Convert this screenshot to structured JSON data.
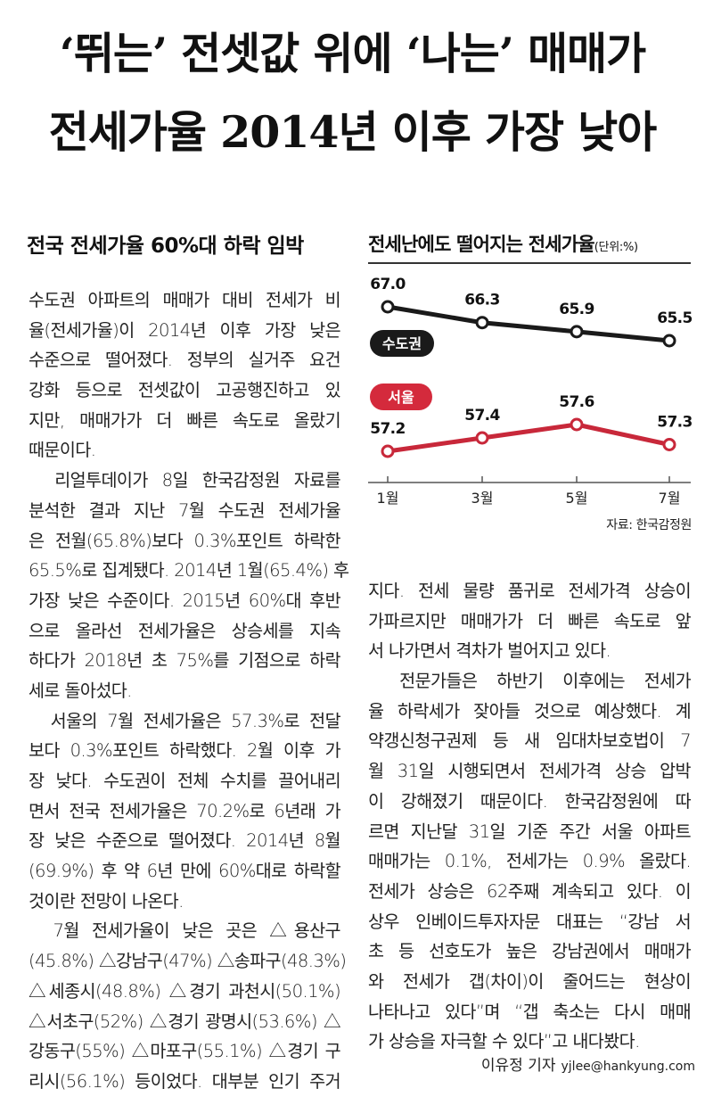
{
  "headline": {
    "line1": "‘뛰는’ 전셋값 위에 ‘나는’ 매매가",
    "line2": "전세가율 2014년 이후 가장 낮아"
  },
  "subhead": "전국 전세가율 60%대 하락 임박",
  "body_left": [
    "수도권 아파트의 매매가 대비 전세가 비",
    "율(전세가율)이 2014년 이후 가장 낮은",
    "수준으로 떨어졌다. 정부의 실거주 요건",
    "강화 등으로 전셋값이 고공행진하고 있",
    "지만, 매매가가 더 빠른 속도로 올랐기",
    "때문이다.",
    "　리얼투데이가 8일 한국감정원 자료를",
    "분석한 결과 지난 7월 수도권 전세가율",
    "은 전월(65.8%)보다 0.3%포인트 하락한",
    "65.5%로 집계됐다. 2014년 1월(65.4%) 후",
    "가장 낮은 수준이다. 2015년 60%대 후반",
    "으로 올라선 전세가율은 상승세를 지속",
    "하다가 2018년 초 75%를 기점으로 하락",
    "세로 돌아섰다.",
    "　서울의 7월 전세가율은 57.3%로 전달",
    "보다 0.3%포인트 하락했다. 2월 이후 가",
    "장 낮다. 수도권이 전체 수치를 끌어내리",
    "면서 전국 전세가율은 70.2%로 6년래 가",
    "장 낮은 수준으로 떨어졌다. 2014년 8월",
    "(69.9%) 후 약 6년 만에 60%대로 하락할",
    "것이란 전망이 나온다.",
    "　7월 전세가율이 낮은 곳은 △용산구",
    "(45.8%) △강남구(47%) △송파구(48.3%)",
    "△세종시(48.8%) △경기 과천시(50.1%)",
    "△서초구(52%) △경기 광명시(53.6%) △",
    "강동구(55%) △마포구(55.1%) △경기 구",
    "리시(56.1%) 등이었다. 대부분 인기 주거"
  ],
  "body_right": [
    "지다. 전세 물량 품귀로 전세가격 상승이",
    "가파르지만 매매가가 더 빠른 속도로 앞",
    "서 나가면서 격차가 벌어지고 있다.",
    "　전문가들은 하반기 이후에는 전세가",
    "율 하락세가 잦아들 것으로 예상했다. 계",
    "약갱신청구권제 등 새 임대차보호법이 7",
    "월 31일 시행되면서 전세가격 상승 압박",
    "이 강해졌기 때문이다. 한국감정원에 따",
    "르면 지난달 31일 기준 주간 서울 아파트",
    "매매가는 0.1%, 전세가는 0.9% 올랐다.",
    "전세가 상승은 62주째 계속되고 있다. 이",
    "상우 인베이드투자자문 대표는 “강남 서",
    "초 등 선호도가 높은 강남권에서 매매가",
    "와 전세가 갭(차이)이 줄어드는 현상이",
    "나타나고 있다”며 “갭 축소는 다시 매매",
    "가 상승을 자극할 수 있다”고 내다봤다."
  ],
  "byline": {
    "name": "이유정 기자",
    "email": "yjlee@hankyung.com"
  },
  "chart_data": {
    "type": "line",
    "title": "전세난에도 떨어지는 전세가율",
    "unit": "(단위:%)",
    "categories": [
      "1월",
      "3월",
      "5월",
      "7월"
    ],
    "series": [
      {
        "name": "수도권",
        "values": [
          67.0,
          66.3,
          65.9,
          65.5
        ],
        "labels": [
          "67.0",
          "66.3",
          "65.9",
          "65.5"
        ],
        "color": "#1a1a1a",
        "badge_color": "#1a1a1a"
      },
      {
        "name": "서울",
        "values": [
          57.2,
          57.4,
          57.6,
          57.3
        ],
        "labels": [
          "57.2",
          "57.4",
          "57.6",
          "57.3"
        ],
        "color": "#c8283a",
        "badge_color": "#d42a3c"
      }
    ],
    "source": "자료: 한국감정원"
  }
}
